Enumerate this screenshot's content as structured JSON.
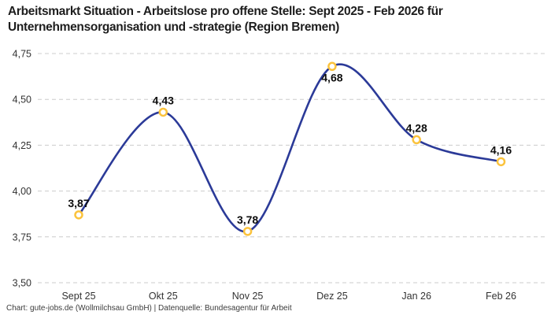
{
  "header": {
    "title_line1": "Arbeitsmarkt Situation - Arbeitslose pro offene Stelle: Sept 2025 - Feb 2026 für",
    "title_line2": "Unternehmensorganisation und -strategie (Region Bremen)"
  },
  "footer": {
    "credit": "Chart: gute-jobs.de (Wollmilchsau GmbH) | Datenquelle: Bundesagentur für Arbeit"
  },
  "chart_data": {
    "type": "line",
    "title": "Arbeitsmarkt Situation - Arbeitslose pro offene Stelle: Sept 2025 - Feb 2026 für Unternehmensorganisation und -strategie (Region Bremen)",
    "categories": [
      "Sept 25",
      "Okt 25",
      "Nov 25",
      "Dez 25",
      "Jan 26",
      "Feb 26"
    ],
    "values": [
      3.87,
      4.43,
      3.78,
      4.68,
      4.28,
      4.16
    ],
    "value_labels": [
      "3,87",
      "4,43",
      "3,78",
      "4,68",
      "4,28",
      "4,16"
    ],
    "label_placements": [
      "above",
      "above",
      "above",
      "below",
      "above",
      "above"
    ],
    "y_tick_values": [
      4.75,
      4.5,
      4.25,
      4.0,
      3.75,
      3.5
    ],
    "y_tick_labels": [
      "4,75",
      "4,50",
      "4,25",
      "4,00",
      "3,75",
      "3,50"
    ],
    "ylim": [
      3.5,
      4.75
    ],
    "xlabel": "",
    "ylabel": "",
    "grid": "horizontal-dashed",
    "legend": "none",
    "curve": "smooth",
    "colors": {
      "line": "#2b3a98",
      "marker_ring": "#fbc33d",
      "marker_fill": "#ffffff",
      "grid": "#cccccc",
      "tick_text": "#333333",
      "value_label": "#0d0d0d"
    }
  }
}
